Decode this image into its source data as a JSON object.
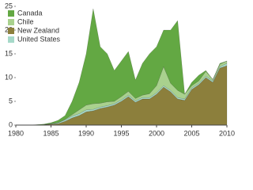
{
  "chart_data": {
    "type": "stacked-area",
    "x": [
      1980,
      1981,
      1982,
      1983,
      1984,
      1985,
      1986,
      1987,
      1988,
      1989,
      1990,
      1991,
      1992,
      1993,
      1994,
      1995,
      1996,
      1997,
      1998,
      1999,
      2000,
      2001,
      2002,
      2003,
      2004,
      2005,
      2006,
      2007,
      2008,
      2009,
      2010
    ],
    "series": [
      {
        "name": "Canada",
        "color": "#63a843",
        "values": [
          0,
          0,
          0,
          0.1,
          0.1,
          0.2,
          0.5,
          0.8,
          2.8,
          5.8,
          10.8,
          20,
          11.9,
          10.1,
          6.5,
          7.5,
          8.4,
          3.9,
          6.7,
          8.4,
          8.2,
          7.7,
          11.2,
          14.7,
          0,
          0.7,
          1.2,
          0.2,
          0,
          0.2,
          0
        ]
      },
      {
        "name": "Chile",
        "color": "#a9d18e",
        "values": [
          0,
          0,
          0,
          0,
          0,
          0,
          0,
          0.1,
          0.3,
          0.8,
          1,
          1.2,
          0.8,
          0.8,
          0.5,
          0.7,
          0.8,
          0.5,
          0.5,
          0.8,
          1.5,
          4,
          1.5,
          1.5,
          1,
          0.5,
          0.5,
          1,
          0.3,
          0.5,
          0.5
        ]
      },
      {
        "name": "New Zealand",
        "color": "#8c7f3c",
        "values": [
          0,
          0,
          0,
          0,
          0.1,
          0.2,
          0.3,
          0.8,
          1.5,
          2,
          2.8,
          3,
          3.5,
          3.8,
          4.2,
          5,
          6,
          4.8,
          5.5,
          5.5,
          6.5,
          8,
          7,
          5.5,
          5.2,
          7.5,
          8.5,
          10,
          9,
          12,
          12.5
        ]
      },
      {
        "name": "United States",
        "color": "#a6d9c9",
        "values": [
          0,
          0,
          0,
          0,
          0,
          0.1,
          0.2,
          0.3,
          0.4,
          0.4,
          0.4,
          0.3,
          0.3,
          0.3,
          0.3,
          0.3,
          0.3,
          0.3,
          0.3,
          0.3,
          0.3,
          0.3,
          0.3,
          0.3,
          0.3,
          0.3,
          0.3,
          0.3,
          0.3,
          0.3,
          0.5
        ]
      }
    ],
    "stack_order": [
      "New Zealand",
      "United States",
      "Chile",
      "Canada"
    ],
    "xlim": [
      1980,
      2010
    ],
    "xticks": [
      1980,
      1985,
      1990,
      1995,
      2000,
      2005,
      2010
    ],
    "ylim": [
      0,
      25
    ],
    "yticks": [
      0,
      5,
      10,
      15,
      20,
      25
    ],
    "legend": "top-left"
  }
}
